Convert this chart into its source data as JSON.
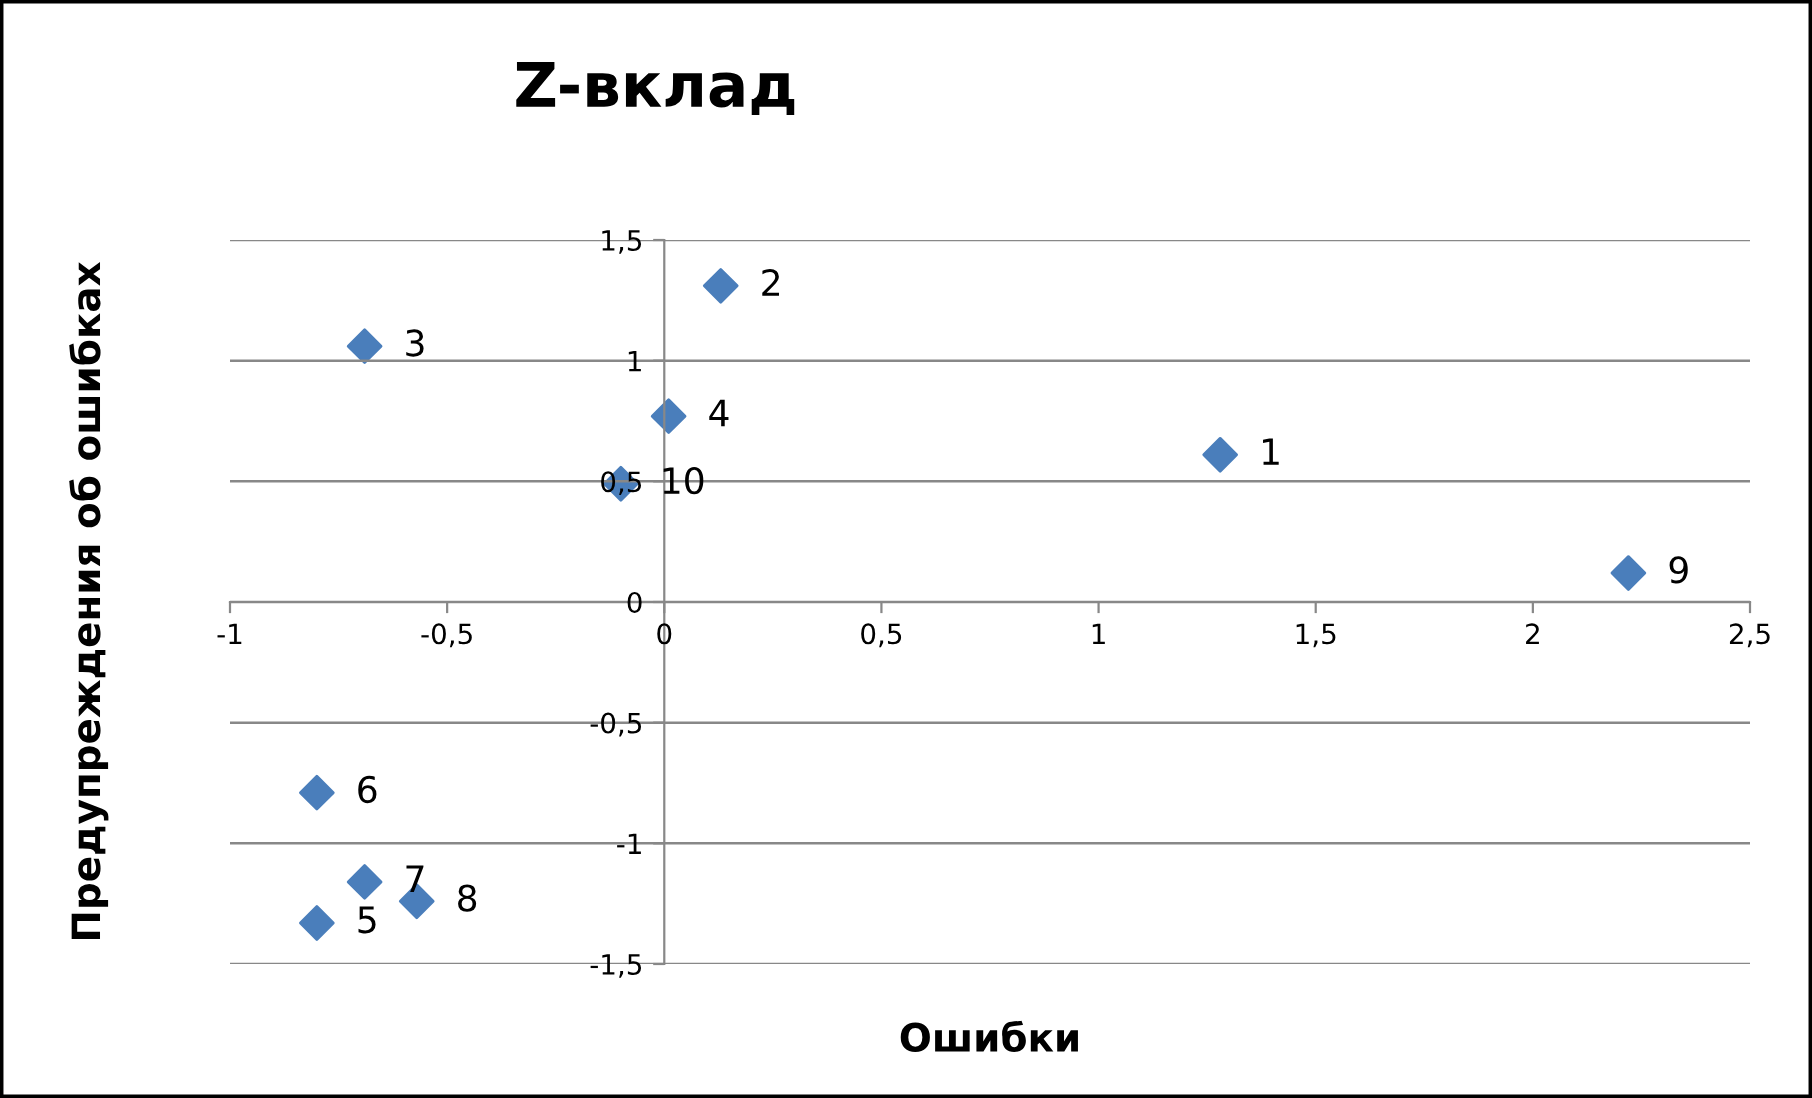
{
  "chart_data": {
    "type": "scatter",
    "title": "Z-вклад",
    "xlabel": "Ошибки",
    "ylabel": "Предупреждения об ошибках",
    "x": [
      1.28,
      0.13,
      -0.69,
      0.01,
      -0.8,
      -0.8,
      -0.69,
      -0.57,
      2.22,
      -0.1
    ],
    "series": [
      {
        "color": "#4a7ebb",
        "values": [
          0.61,
          1.31,
          1.06,
          0.77,
          -1.33,
          -0.79,
          -1.16,
          -1.24,
          0.12,
          0.49
        ]
      }
    ],
    "annotations": [
      {
        "text": "1",
        "x": 1.28,
        "y": 0.61
      },
      {
        "text": "2",
        "x": 0.13,
        "y": 1.31
      },
      {
        "text": "3",
        "x": -0.69,
        "y": 1.06
      },
      {
        "text": "4",
        "x": 0.01,
        "y": 0.77
      },
      {
        "text": "5",
        "x": -0.8,
        "y": -1.33
      },
      {
        "text": "6",
        "x": -0.8,
        "y": -0.79
      },
      {
        "text": "7",
        "x": -0.69,
        "y": -1.16
      },
      {
        "text": "8",
        "x": -0.57,
        "y": -1.24
      },
      {
        "text": "9",
        "x": 2.22,
        "y": 0.12
      },
      {
        "text": "10",
        "x": -0.1,
        "y": 0.49
      }
    ],
    "xlim": [
      -1,
      2.5
    ],
    "ylim": [
      -1.5,
      1.5
    ],
    "xticks": [
      -1,
      {
        "value": -0.5,
        "label": "-0,5"
      },
      0,
      {
        "value": 0.5,
        "label": "0,5"
      },
      1,
      {
        "value": 1.5,
        "label": "1,5"
      },
      2,
      {
        "value": 2.5,
        "label": "2,5"
      }
    ],
    "yticks": [
      {
        "value": -1.5,
        "label": "-1,5"
      },
      -1,
      {
        "value": -0.5,
        "label": "-0,5"
      },
      0,
      {
        "value": 0.5,
        "label": "0,5"
      },
      1,
      {
        "value": 1.5,
        "label": "1,5"
      }
    ],
    "grid": "y",
    "marker": "diamond"
  }
}
